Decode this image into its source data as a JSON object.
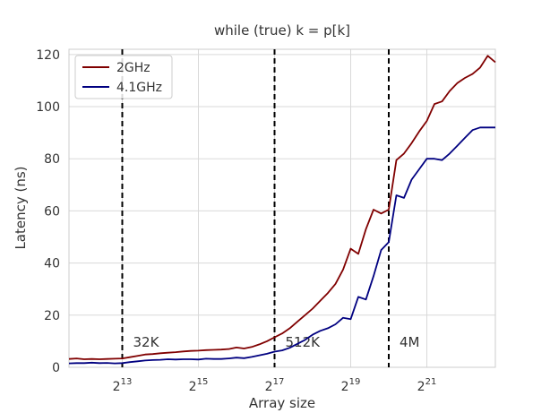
{
  "chart_data": {
    "type": "line",
    "title": "while (true) k = p[k]",
    "xlabel": "Array size",
    "ylabel": "Latency (ns)",
    "xscale": "log2",
    "xlim_log2": [
      11.6,
      22.8
    ],
    "ylim": [
      0,
      122
    ],
    "grid": true,
    "legend_position": "top-left",
    "x_ticks": [
      {
        "exp": 13,
        "base": "2",
        "sup": "13"
      },
      {
        "exp": 15,
        "base": "2",
        "sup": "15"
      },
      {
        "exp": 17,
        "base": "2",
        "sup": "17"
      },
      {
        "exp": 19,
        "base": "2",
        "sup": "19"
      },
      {
        "exp": 21,
        "base": "2",
        "sup": "21"
      }
    ],
    "y_ticks": [
      0,
      20,
      40,
      60,
      80,
      100,
      120
    ],
    "vlines": [
      {
        "x_log2": 13,
        "label": "32K"
      },
      {
        "x_log2": 17,
        "label": "512K"
      },
      {
        "x_log2": 20,
        "label": "4M"
      }
    ],
    "series": [
      {
        "name": "2GHz",
        "color": "#800000",
        "points": [
          [
            11.6,
            3.2
          ],
          [
            11.8,
            3.4
          ],
          [
            12.0,
            3.1
          ],
          [
            12.2,
            3.2
          ],
          [
            12.4,
            3.1
          ],
          [
            12.6,
            3.2
          ],
          [
            12.8,
            3.3
          ],
          [
            13.0,
            3.4
          ],
          [
            13.2,
            3.9
          ],
          [
            13.4,
            4.4
          ],
          [
            13.6,
            4.9
          ],
          [
            13.8,
            5.1
          ],
          [
            14.0,
            5.4
          ],
          [
            14.2,
            5.6
          ],
          [
            14.4,
            5.8
          ],
          [
            14.6,
            6.1
          ],
          [
            14.8,
            6.3
          ],
          [
            15.0,
            6.4
          ],
          [
            15.2,
            6.6
          ],
          [
            15.4,
            6.7
          ],
          [
            15.6,
            6.8
          ],
          [
            15.8,
            7.0
          ],
          [
            16.0,
            7.6
          ],
          [
            16.2,
            7.2
          ],
          [
            16.4,
            7.8
          ],
          [
            16.6,
            8.8
          ],
          [
            16.8,
            10.0
          ],
          [
            17.0,
            11.5
          ],
          [
            17.2,
            13.0
          ],
          [
            17.4,
            15.0
          ],
          [
            17.6,
            17.5
          ],
          [
            17.8,
            20.0
          ],
          [
            18.0,
            22.5
          ],
          [
            18.2,
            25.5
          ],
          [
            18.4,
            28.5
          ],
          [
            18.6,
            32.0
          ],
          [
            18.8,
            37.5
          ],
          [
            19.0,
            45.5
          ],
          [
            19.2,
            43.5
          ],
          [
            19.4,
            53.0
          ],
          [
            19.6,
            60.5
          ],
          [
            19.8,
            59.0
          ],
          [
            20.0,
            60.5
          ],
          [
            20.2,
            79.5
          ],
          [
            20.4,
            82.0
          ],
          [
            20.6,
            86.0
          ],
          [
            20.8,
            90.5
          ],
          [
            21.0,
            94.5
          ],
          [
            21.2,
            101.0
          ],
          [
            21.4,
            102.0
          ],
          [
            21.6,
            106.0
          ],
          [
            21.8,
            109.0
          ],
          [
            22.0,
            111.0
          ],
          [
            22.2,
            112.5
          ],
          [
            22.4,
            115.0
          ],
          [
            22.6,
            119.5
          ],
          [
            22.8,
            117.0
          ]
        ]
      },
      {
        "name": "4.1GHz",
        "color": "#000080",
        "points": [
          [
            11.6,
            1.5
          ],
          [
            11.8,
            1.6
          ],
          [
            12.0,
            1.6
          ],
          [
            12.2,
            1.8
          ],
          [
            12.4,
            1.6
          ],
          [
            12.6,
            1.7
          ],
          [
            12.8,
            1.5
          ],
          [
            13.0,
            1.6
          ],
          [
            13.2,
            2.0
          ],
          [
            13.4,
            2.3
          ],
          [
            13.6,
            2.6
          ],
          [
            13.8,
            2.8
          ],
          [
            14.0,
            2.9
          ],
          [
            14.2,
            3.1
          ],
          [
            14.4,
            3.0
          ],
          [
            14.6,
            3.1
          ],
          [
            14.8,
            3.1
          ],
          [
            15.0,
            3.0
          ],
          [
            15.2,
            3.3
          ],
          [
            15.4,
            3.2
          ],
          [
            15.6,
            3.2
          ],
          [
            15.8,
            3.4
          ],
          [
            16.0,
            3.7
          ],
          [
            16.2,
            3.5
          ],
          [
            16.4,
            4.0
          ],
          [
            16.6,
            4.6
          ],
          [
            16.8,
            5.2
          ],
          [
            17.0,
            6.0
          ],
          [
            17.2,
            6.5
          ],
          [
            17.4,
            7.5
          ],
          [
            17.6,
            9.0
          ],
          [
            17.8,
            10.5
          ],
          [
            18.0,
            12.5
          ],
          [
            18.2,
            14.0
          ],
          [
            18.4,
            15.0
          ],
          [
            18.6,
            16.5
          ],
          [
            18.8,
            19.0
          ],
          [
            19.0,
            18.5
          ],
          [
            19.2,
            27.0
          ],
          [
            19.4,
            26.0
          ],
          [
            19.6,
            35.0
          ],
          [
            19.8,
            45.0
          ],
          [
            20.0,
            48.0
          ],
          [
            20.2,
            66.0
          ],
          [
            20.4,
            65.0
          ],
          [
            20.6,
            72.0
          ],
          [
            20.8,
            76.0
          ],
          [
            21.0,
            80.0
          ],
          [
            21.2,
            80.0
          ],
          [
            21.4,
            79.5
          ],
          [
            21.6,
            82.0
          ],
          [
            21.8,
            85.0
          ],
          [
            22.0,
            88.0
          ],
          [
            22.2,
            91.0
          ],
          [
            22.4,
            92.0
          ],
          [
            22.6,
            92.0
          ],
          [
            22.8,
            92.0
          ]
        ]
      }
    ]
  }
}
